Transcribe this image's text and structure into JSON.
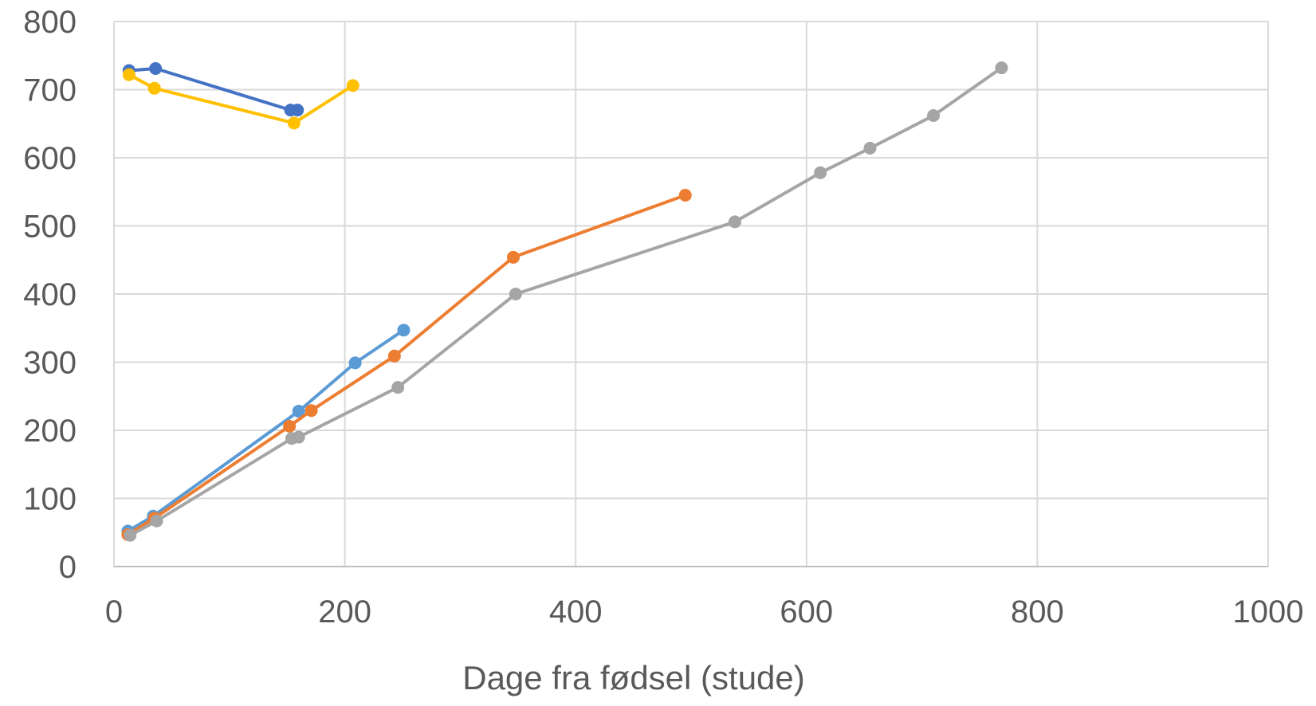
{
  "chart_data": {
    "type": "scatter",
    "title": "",
    "xlabel": "Dage fra fødsel (stude)",
    "ylabel": "",
    "xlim": [
      0,
      1000
    ],
    "ylim": [
      0,
      800
    ],
    "x_ticks": [
      "0",
      "200",
      "400",
      "600",
      "800",
      "1000"
    ],
    "y_ticks": [
      "0",
      "100",
      "200",
      "300",
      "400",
      "500",
      "600",
      "700",
      "800"
    ],
    "grid": true,
    "legend": "none",
    "series": [
      {
        "color": "#4472C4",
        "points": [
          [
            13,
            728
          ],
          [
            36,
            731
          ],
          [
            153,
            670
          ],
          [
            159,
            670
          ]
        ]
      },
      {
        "color": "#FFC000",
        "points": [
          [
            13,
            722
          ],
          [
            35,
            702
          ],
          [
            156,
            651
          ],
          [
            207,
            706
          ]
        ]
      },
      {
        "color": "#5B9BD5",
        "points": [
          [
            12,
            52
          ],
          [
            34,
            74
          ],
          [
            160,
            228
          ],
          [
            209,
            299
          ],
          [
            251,
            347
          ]
        ]
      },
      {
        "color": "#ED7D31",
        "points": [
          [
            12,
            47
          ],
          [
            35,
            71
          ],
          [
            152,
            206
          ],
          [
            171,
            229
          ],
          [
            243,
            309
          ],
          [
            346,
            454
          ],
          [
            495,
            545
          ]
        ]
      },
      {
        "color": "#A5A5A5",
        "points": [
          [
            14,
            46
          ],
          [
            37,
            67
          ],
          [
            154,
            188
          ],
          [
            160,
            190
          ],
          [
            246,
            263
          ],
          [
            348,
            400
          ],
          [
            538,
            506
          ],
          [
            612,
            578
          ],
          [
            655,
            614
          ],
          [
            710,
            662
          ],
          [
            769,
            732
          ]
        ]
      }
    ]
  }
}
